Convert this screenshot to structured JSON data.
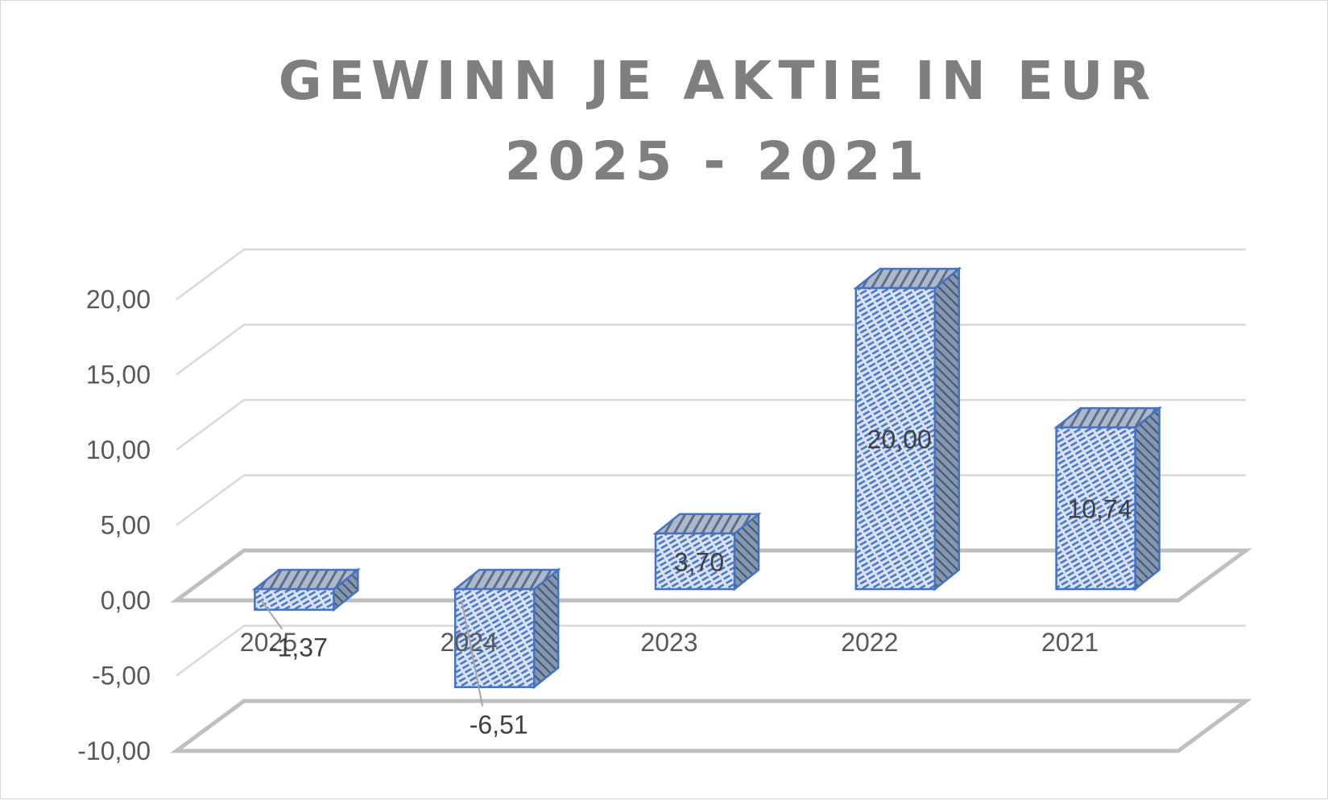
{
  "chart_data": {
    "type": "bar",
    "title": "GEWINN JE AKTIE IN EUR 2025 - 2021",
    "categories": [
      "2025",
      "2024",
      "2023",
      "2022",
      "2021"
    ],
    "values": [
      -1.37,
      -6.51,
      3.7,
      20.0,
      10.74
    ],
    "value_labels": [
      "-1,37",
      "-6,51",
      "3,70",
      "20,00",
      "10,74"
    ],
    "y_ticks": [
      "-10,00",
      "-5,00",
      "0,00",
      "5,00",
      "10,00",
      "15,00",
      "20,00"
    ],
    "ylim": [
      -10,
      20
    ],
    "grid": true,
    "legend": "none",
    "style": "3d-column",
    "colors": {
      "bar_face": "#dae3f3",
      "bar_hatch": "#4472c4",
      "bar_edge": "#4472c4",
      "bar_side": "#8497b0",
      "grid": "#d9d9d9",
      "floor": "#bfbfbf",
      "text": "#595959",
      "title": "#7f7f7f"
    }
  }
}
